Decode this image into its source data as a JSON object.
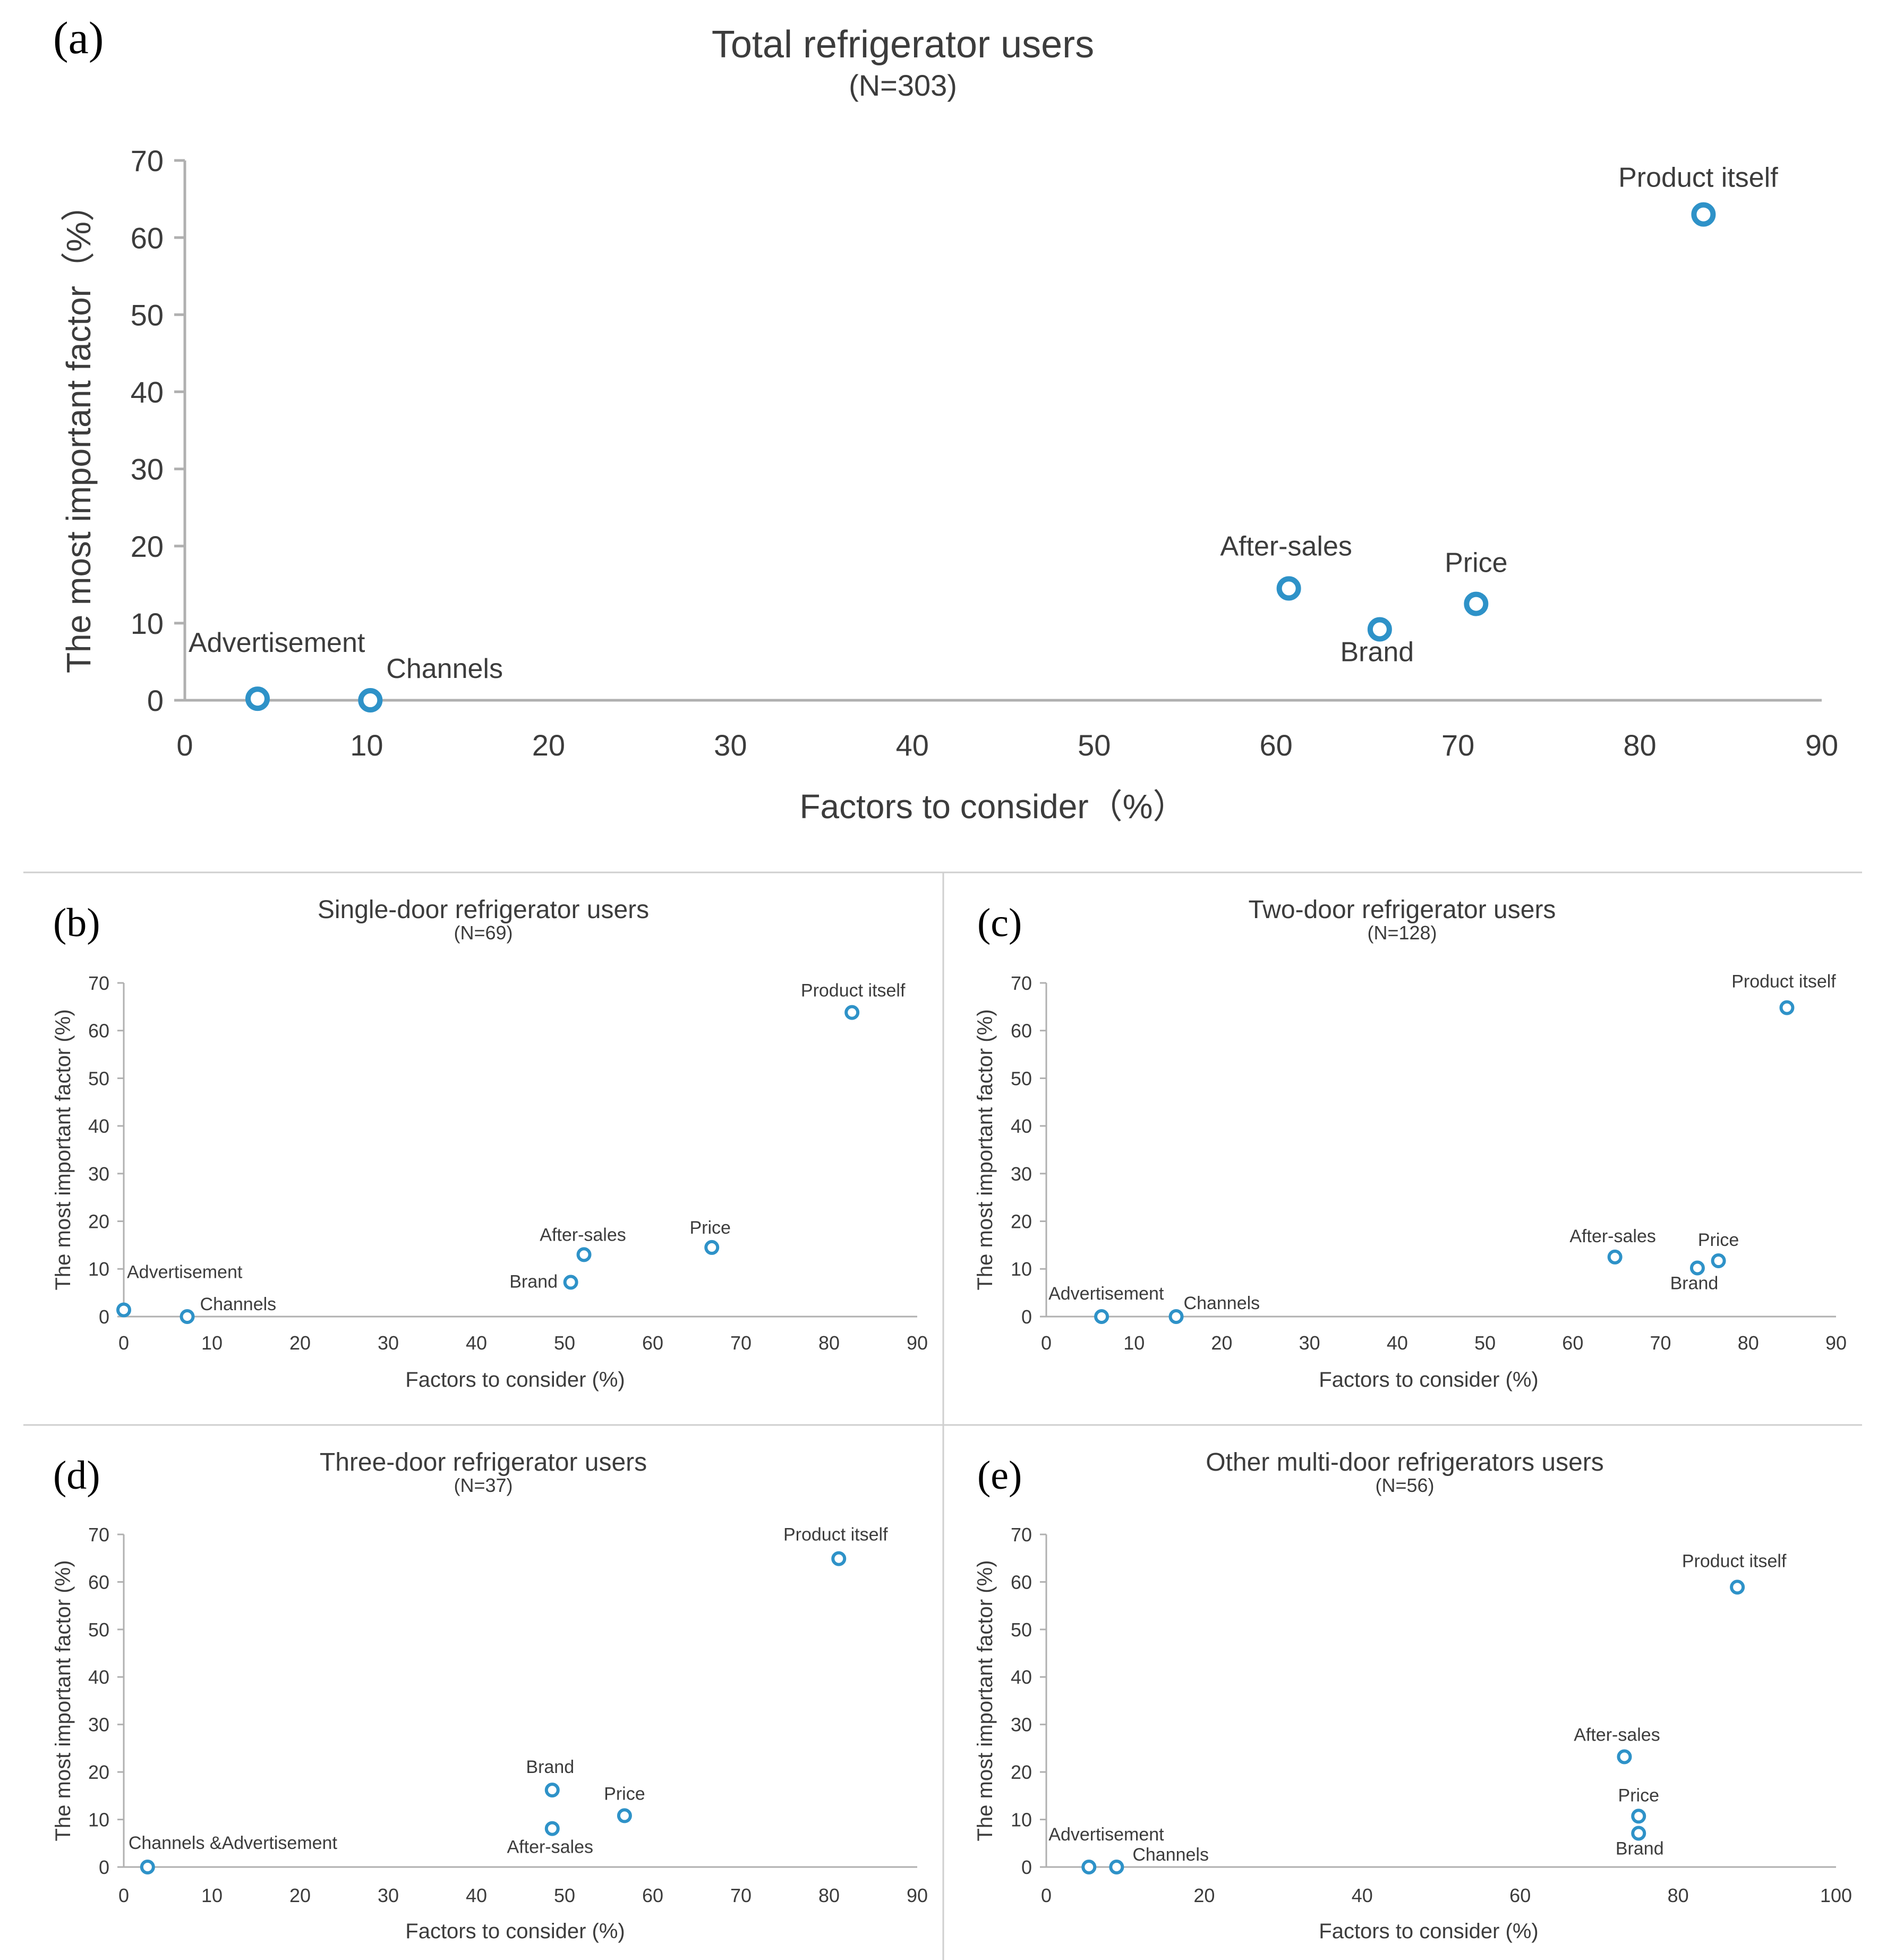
{
  "colors": {
    "marker": "#2e92c8",
    "axis": "#b0b0b0",
    "text": "#3c3c3c",
    "divider": "#cfcfcf"
  },
  "chart_data": [
    {
      "type": "scatter",
      "panel": "(a)",
      "title": "Total refrigerator users",
      "subtitle": "(N=303)",
      "xlabel": "Factors to consider（%）",
      "ylabel": "The most important factor（%）",
      "xlim": [
        0,
        90
      ],
      "ylim": [
        0,
        70
      ],
      "xticks": [
        0,
        10,
        20,
        30,
        40,
        50,
        60,
        70,
        80,
        90
      ],
      "yticks": [
        0,
        10,
        20,
        30,
        40,
        50,
        60,
        70
      ],
      "points": [
        {
          "label": "Advertisement",
          "x": 4,
          "y": 0.2
        },
        {
          "label": "Channels",
          "x": 10.2,
          "y": 0
        },
        {
          "label": "After-sales",
          "x": 60.7,
          "y": 14.5
        },
        {
          "label": "Brand",
          "x": 65.7,
          "y": 9.2
        },
        {
          "label": "Price",
          "x": 71,
          "y": 12.5
        },
        {
          "label": "Product itself",
          "x": 83.5,
          "y": 63
        }
      ]
    },
    {
      "type": "scatter",
      "panel": "(b)",
      "title": "Single-door refrigerator users",
      "subtitle": "(N=69)",
      "xlabel": "Factors to consider (%)",
      "ylabel": "The most important factor (%)",
      "xlim": [
        0,
        90
      ],
      "ylim": [
        0,
        70
      ],
      "xticks": [
        0,
        10,
        20,
        30,
        40,
        50,
        60,
        70,
        80,
        90
      ],
      "yticks": [
        0,
        10,
        20,
        30,
        40,
        50,
        60,
        70
      ],
      "points": [
        {
          "label": "Advertisement",
          "x": 0,
          "y": 1.4
        },
        {
          "label": "Channels",
          "x": 7.2,
          "y": 0
        },
        {
          "label": "Brand",
          "x": 50.7,
          "y": 7.2
        },
        {
          "label": "After-sales",
          "x": 52.2,
          "y": 13
        },
        {
          "label": "Price",
          "x": 66.7,
          "y": 14.5
        },
        {
          "label": "Product itself",
          "x": 82.6,
          "y": 63.8
        }
      ]
    },
    {
      "type": "scatter",
      "panel": "(c)",
      "title": "Two-door refrigerator users",
      "subtitle": "(N=128)",
      "xlabel": "Factors to consider (%)",
      "ylabel": "The most important factor (%)",
      "xlim": [
        0,
        90
      ],
      "ylim": [
        0,
        70
      ],
      "xticks": [
        0,
        10,
        20,
        30,
        40,
        50,
        60,
        70,
        80,
        90
      ],
      "yticks": [
        0,
        10,
        20,
        30,
        40,
        50,
        60,
        70
      ],
      "points": [
        {
          "label": "Advertisement",
          "x": 6.3,
          "y": 0
        },
        {
          "label": "Channels",
          "x": 14.8,
          "y": 0
        },
        {
          "label": "After-sales",
          "x": 64.8,
          "y": 12.5
        },
        {
          "label": "Brand",
          "x": 74.2,
          "y": 10.2
        },
        {
          "label": "Price",
          "x": 76.6,
          "y": 11.7
        },
        {
          "label": "Product itself",
          "x": 84.4,
          "y": 64.8
        }
      ]
    },
    {
      "type": "scatter",
      "panel": "(d)",
      "title": "Three-door refrigerator users",
      "subtitle": "(N=37)",
      "xlabel": "Factors to consider (%)",
      "ylabel": "The most important factor (%)",
      "xlim": [
        0,
        90
      ],
      "ylim": [
        0,
        70
      ],
      "xticks": [
        0,
        10,
        20,
        30,
        40,
        50,
        60,
        70,
        80,
        90
      ],
      "yticks": [
        0,
        10,
        20,
        30,
        40,
        50,
        60,
        70
      ],
      "points": [
        {
          "label": "Channels &Advertisement",
          "x": 2.7,
          "y": 0
        },
        {
          "label": "Brand",
          "x": 48.6,
          "y": 16.2
        },
        {
          "label": "After-sales",
          "x": 48.6,
          "y": 8.1
        },
        {
          "label": "Price",
          "x": 56.8,
          "y": 10.8
        },
        {
          "label": "Product itself",
          "x": 81.1,
          "y": 64.9
        }
      ]
    },
    {
      "type": "scatter",
      "panel": "(e)",
      "title": "Other multi-door refrigerators users",
      "subtitle": "(N=56)",
      "xlabel": "Factors to consider (%)",
      "ylabel": "The most important factor (%)",
      "xlim": [
        0,
        100
      ],
      "ylim": [
        0,
        70
      ],
      "xticks": [
        0,
        20,
        40,
        60,
        80,
        100
      ],
      "yticks": [
        0,
        10,
        20,
        30,
        40,
        50,
        60,
        70
      ],
      "points": [
        {
          "label": "Advertisement",
          "x": 5.4,
          "y": 0
        },
        {
          "label": "Channels",
          "x": 8.9,
          "y": 0
        },
        {
          "label": "After-sales",
          "x": 73.2,
          "y": 23.2
        },
        {
          "label": "Price",
          "x": 75,
          "y": 10.7
        },
        {
          "label": "Brand",
          "x": 75,
          "y": 7.1
        },
        {
          "label": "Product itself",
          "x": 87.5,
          "y": 58.9
        }
      ]
    }
  ]
}
